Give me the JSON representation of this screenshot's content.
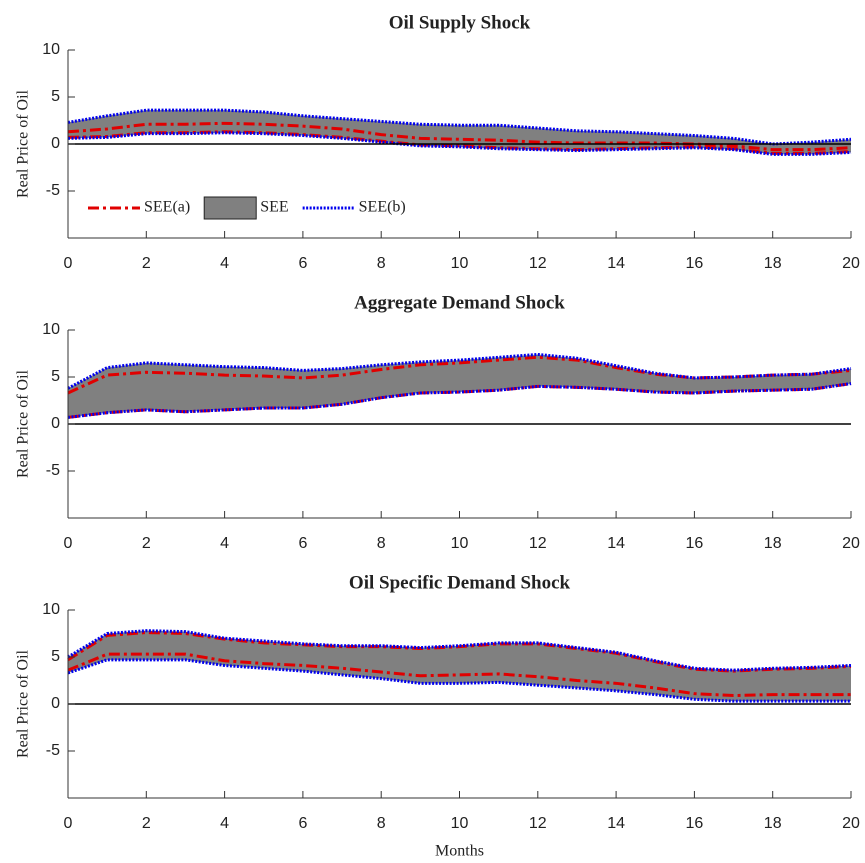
{
  "chart_data": [
    {
      "type": "band",
      "title": "Oil Supply Shock",
      "ylabel": "Real Price of Oil",
      "x": [
        0,
        1,
        2,
        3,
        4,
        5,
        6,
        7,
        8,
        9,
        10,
        11,
        12,
        13,
        14,
        15,
        16,
        17,
        18,
        19,
        20
      ],
      "xlim": [
        0,
        20
      ],
      "xticks": [
        0,
        2,
        4,
        6,
        8,
        10,
        12,
        14,
        16,
        18,
        20
      ],
      "ylim": [
        -10,
        10
      ],
      "yticks": [
        -5,
        0,
        5,
        10
      ],
      "zero_line": 0,
      "legend": "lower left",
      "series": [
        {
          "name": "SEE(a)",
          "color": "#e00000",
          "style": "dashdot",
          "upper": [
            1.3,
            1.6,
            2.1,
            2.1,
            2.2,
            2.1,
            1.9,
            1.6,
            1.0,
            0.6,
            0.5,
            0.4,
            0.2,
            0.1,
            0.1,
            0.1,
            0.0,
            -0.2,
            -0.6,
            -0.6,
            -0.4
          ],
          "lower": [
            0.7,
            0.8,
            1.2,
            1.2,
            1.3,
            1.2,
            1.0,
            0.7,
            0.3,
            -0.1,
            -0.2,
            -0.4,
            -0.5,
            -0.6,
            -0.5,
            -0.4,
            -0.3,
            -0.5,
            -1.0,
            -1.0,
            -0.8
          ]
        },
        {
          "name": "SEE",
          "color": "#808080",
          "style": "band",
          "upper": [
            2.3,
            3.0,
            3.6,
            3.6,
            3.6,
            3.4,
            3.0,
            2.7,
            2.4,
            2.1,
            2.0,
            2.0,
            1.7,
            1.4,
            1.3,
            1.1,
            0.9,
            0.6,
            0.0,
            0.2,
            0.5
          ],
          "lower": [
            0.6,
            0.7,
            1.1,
            1.1,
            1.2,
            1.1,
            0.9,
            0.6,
            0.2,
            -0.2,
            -0.3,
            -0.5,
            -0.6,
            -0.7,
            -0.6,
            -0.5,
            -0.4,
            -0.6,
            -1.1,
            -1.1,
            -0.9
          ]
        },
        {
          "name": "SEE(b)",
          "color": "#0000ee",
          "style": "dotted",
          "upper": [
            2.3,
            3.0,
            3.6,
            3.6,
            3.6,
            3.4,
            3.0,
            2.7,
            2.4,
            2.1,
            2.0,
            2.0,
            1.7,
            1.4,
            1.3,
            1.1,
            0.9,
            0.6,
            0.0,
            0.2,
            0.5
          ],
          "lower": [
            0.6,
            0.7,
            1.1,
            1.1,
            1.2,
            1.1,
            0.9,
            0.6,
            0.2,
            -0.2,
            -0.3,
            -0.5,
            -0.6,
            -0.7,
            -0.6,
            -0.5,
            -0.4,
            -0.6,
            -1.1,
            -1.1,
            -0.9
          ]
        }
      ]
    },
    {
      "type": "band",
      "title": "Aggregate Demand Shock",
      "ylabel": "Real Price of Oil",
      "x": [
        0,
        1,
        2,
        3,
        4,
        5,
        6,
        7,
        8,
        9,
        10,
        11,
        12,
        13,
        14,
        15,
        16,
        17,
        18,
        19,
        20
      ],
      "xlim": [
        0,
        20
      ],
      "xticks": [
        0,
        2,
        4,
        6,
        8,
        10,
        12,
        14,
        16,
        18,
        20
      ],
      "ylim": [
        -10,
        10
      ],
      "yticks": [
        -5,
        0,
        5,
        10
      ],
      "zero_line": 0,
      "series": [
        {
          "color": "#e00000",
          "style": "dashdot",
          "upper": [
            3.3,
            5.2,
            5.5,
            5.4,
            5.2,
            5.1,
            4.9,
            5.2,
            5.8,
            6.3,
            6.5,
            6.8,
            7.1,
            6.8,
            6.0,
            5.3,
            4.9,
            5.0,
            5.2,
            5.3,
            5.7
          ],
          "lower": [
            0.7,
            1.2,
            1.5,
            1.3,
            1.5,
            1.7,
            1.7,
            2.1,
            2.8,
            3.3,
            3.4,
            3.6,
            4.0,
            3.9,
            3.7,
            3.4,
            3.3,
            3.5,
            3.6,
            3.7,
            4.3
          ]
        },
        {
          "color": "#808080",
          "style": "band",
          "upper": [
            3.8,
            6.0,
            6.5,
            6.3,
            6.1,
            6.0,
            5.7,
            5.9,
            6.3,
            6.6,
            6.8,
            7.1,
            7.4,
            7.0,
            6.2,
            5.4,
            4.9,
            5.0,
            5.2,
            5.3,
            5.9
          ],
          "lower": [
            0.7,
            1.2,
            1.5,
            1.3,
            1.5,
            1.7,
            1.7,
            2.1,
            2.8,
            3.3,
            3.4,
            3.6,
            4.0,
            3.9,
            3.7,
            3.4,
            3.3,
            3.5,
            3.6,
            3.7,
            4.3
          ]
        },
        {
          "color": "#0000ee",
          "style": "dotted",
          "upper": [
            3.8,
            6.0,
            6.5,
            6.3,
            6.1,
            6.0,
            5.7,
            5.9,
            6.3,
            6.6,
            6.8,
            7.1,
            7.4,
            7.0,
            6.2,
            5.4,
            4.9,
            5.0,
            5.2,
            5.3,
            5.9
          ],
          "lower": [
            0.7,
            1.2,
            1.5,
            1.3,
            1.5,
            1.7,
            1.7,
            2.1,
            2.8,
            3.3,
            3.4,
            3.6,
            4.0,
            3.9,
            3.7,
            3.4,
            3.3,
            3.5,
            3.6,
            3.7,
            4.3
          ]
        }
      ]
    },
    {
      "type": "band",
      "title": "Oil Specific Demand Shock",
      "ylabel": "Real Price of Oil",
      "xlabel": "Months",
      "x": [
        0,
        1,
        2,
        3,
        4,
        5,
        6,
        7,
        8,
        9,
        10,
        11,
        12,
        13,
        14,
        15,
        16,
        17,
        18,
        19,
        20
      ],
      "xlim": [
        0,
        20
      ],
      "xticks": [
        0,
        2,
        4,
        6,
        8,
        10,
        12,
        14,
        16,
        18,
        20
      ],
      "ylim": [
        -10,
        10
      ],
      "yticks": [
        -5,
        0,
        5,
        10
      ],
      "zero_line": 0,
      "series": [
        {
          "color": "#e00000",
          "style": "dashdot",
          "upper": [
            4.7,
            7.3,
            7.6,
            7.5,
            6.9,
            6.5,
            6.3,
            6.1,
            6.1,
            5.9,
            6.1,
            6.4,
            6.4,
            5.9,
            5.4,
            4.5,
            3.7,
            3.5,
            3.7,
            3.8,
            4.0
          ],
          "lower": [
            3.6,
            5.3,
            5.3,
            5.3,
            4.6,
            4.3,
            4.1,
            3.8,
            3.4,
            3.0,
            3.1,
            3.2,
            2.9,
            2.5,
            2.2,
            1.7,
            1.1,
            0.9,
            1.0,
            1.0,
            1.0
          ]
        },
        {
          "color": "#808080",
          "style": "band",
          "upper": [
            5.0,
            7.5,
            7.8,
            7.7,
            7.0,
            6.7,
            6.4,
            6.2,
            6.2,
            6.0,
            6.2,
            6.5,
            6.5,
            6.0,
            5.5,
            4.6,
            3.8,
            3.6,
            3.8,
            3.9,
            4.1
          ],
          "lower": [
            3.3,
            4.7,
            4.7,
            4.7,
            4.1,
            3.8,
            3.5,
            3.1,
            2.7,
            2.2,
            2.2,
            2.3,
            2.0,
            1.7,
            1.4,
            1.0,
            0.5,
            0.3,
            0.3,
            0.3,
            0.3
          ]
        },
        {
          "color": "#0000ee",
          "style": "dotted",
          "upper": [
            5.0,
            7.5,
            7.8,
            7.7,
            7.0,
            6.7,
            6.4,
            6.2,
            6.2,
            6.0,
            6.2,
            6.5,
            6.5,
            6.0,
            5.5,
            4.6,
            3.8,
            3.6,
            3.8,
            3.9,
            4.1
          ],
          "lower": [
            3.3,
            4.7,
            4.7,
            4.7,
            4.1,
            3.8,
            3.5,
            3.1,
            2.7,
            2.2,
            2.2,
            2.3,
            2.0,
            1.7,
            1.4,
            1.0,
            0.5,
            0.3,
            0.3,
            0.3,
            0.3
          ]
        }
      ]
    }
  ]
}
